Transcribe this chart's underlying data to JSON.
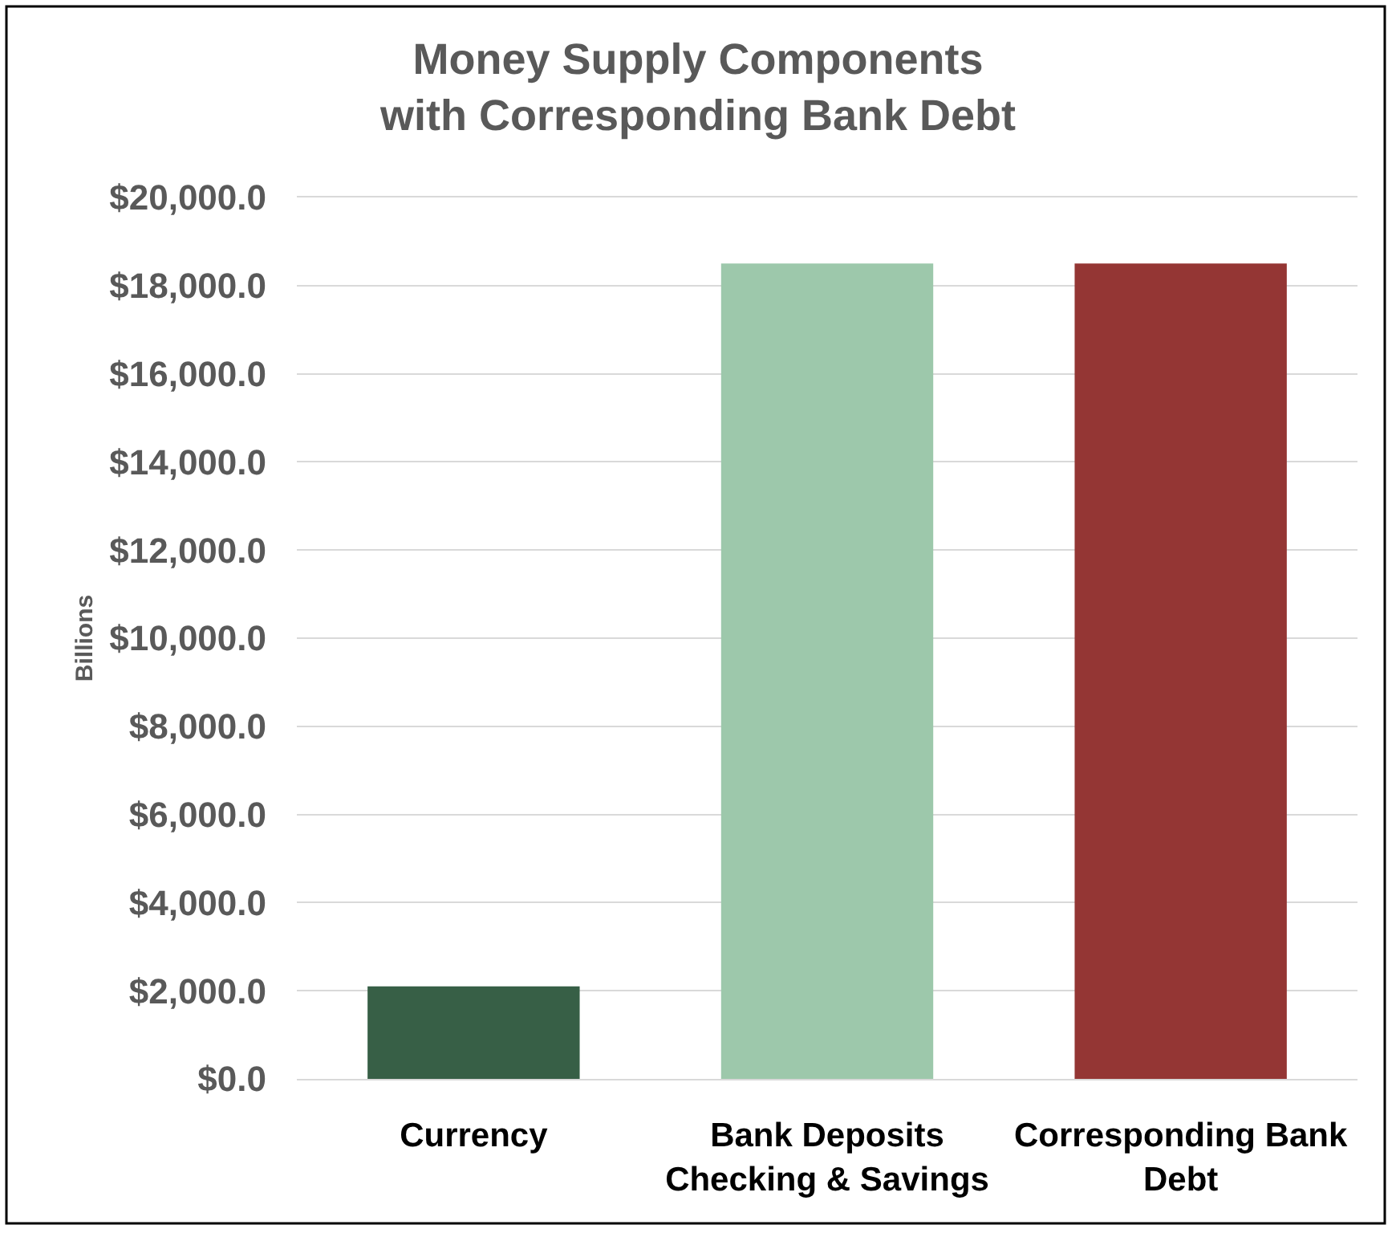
{
  "chart_data": {
    "type": "bar",
    "title": "Money Supply Components\nwith Corresponding Bank Debt",
    "ylabel": "Billions",
    "categories": [
      "Currency",
      "Bank Deposits\nChecking & Savings",
      "Corresponding Bank\nDebt"
    ],
    "values": [
      2100,
      18500,
      18500
    ],
    "colors": [
      "#375f46",
      "#9dc8ab",
      "#943634"
    ],
    "ylim": [
      0,
      20000
    ],
    "yticks": [
      {
        "value": 0,
        "label": "$0.0"
      },
      {
        "value": 2000,
        "label": "$2,000.0"
      },
      {
        "value": 4000,
        "label": "$4,000.0"
      },
      {
        "value": 6000,
        "label": "$6,000.0"
      },
      {
        "value": 8000,
        "label": "$8,000.0"
      },
      {
        "value": 10000,
        "label": "$10,000.0"
      },
      {
        "value": 12000,
        "label": "$12,000.0"
      },
      {
        "value": 14000,
        "label": "$14,000.0"
      },
      {
        "value": 16000,
        "label": "$16,000.0"
      },
      {
        "value": 18000,
        "label": "$18,000.0"
      },
      {
        "value": 20000,
        "label": "$20,000.0"
      }
    ],
    "grid": "y",
    "legend": false
  }
}
